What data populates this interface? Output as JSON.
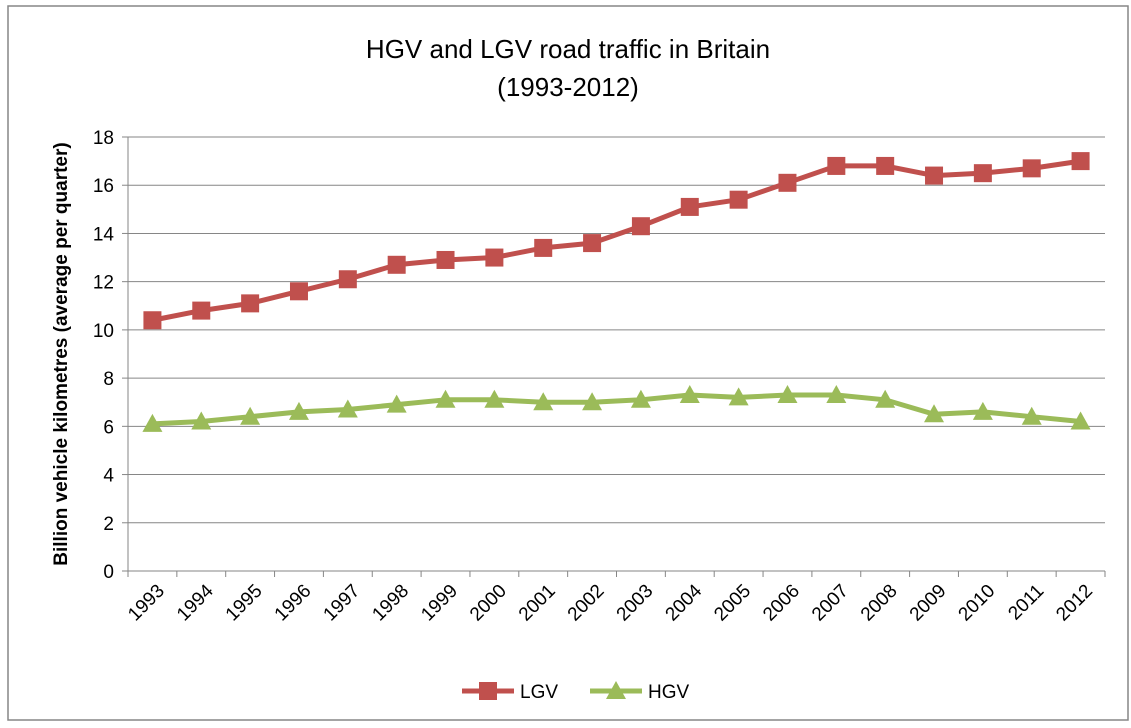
{
  "chart_data": {
    "type": "line",
    "title": "HGV and LGV road traffic in Britain",
    "subtitle": "(1993-2012)",
    "y_label": "Billion vehicle kilometres (average per quarter)",
    "categories": [
      "1993",
      "1994",
      "1995",
      "1996",
      "1997",
      "1998",
      "1999",
      "2000",
      "2001",
      "2002",
      "2003",
      "2004",
      "2005",
      "2006",
      "2007",
      "2008",
      "2009",
      "2010",
      "2011",
      "2012"
    ],
    "series": [
      {
        "name": "LGV",
        "color": "#c0504d",
        "marker": "square",
        "values": [
          10.4,
          10.8,
          11.1,
          11.6,
          12.1,
          12.7,
          12.9,
          13.0,
          13.4,
          13.6,
          14.3,
          15.1,
          15.4,
          16.1,
          16.8,
          16.8,
          16.4,
          16.5,
          16.7,
          17.0
        ]
      },
      {
        "name": "HGV",
        "color": "#9bbb59",
        "marker": "triangle",
        "values": [
          6.1,
          6.2,
          6.4,
          6.6,
          6.7,
          6.9,
          7.1,
          7.1,
          7.0,
          7.0,
          7.1,
          7.3,
          7.2,
          7.3,
          7.3,
          7.1,
          6.5,
          6.6,
          6.4,
          6.2
        ]
      }
    ],
    "ylim": [
      0,
      18
    ],
    "yticks": [
      0,
      2,
      4,
      6,
      8,
      10,
      12,
      14,
      16,
      18
    ],
    "grid": true,
    "legend": "bottom"
  }
}
